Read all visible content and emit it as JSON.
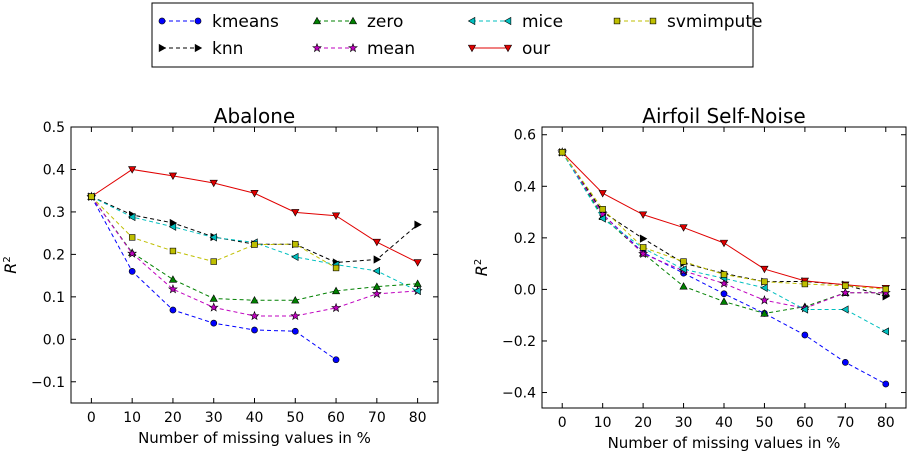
{
  "legend": {
    "placement": "top-center",
    "entries": [
      {
        "key": "kmeans",
        "label": "kmeans",
        "color": "#0000ff",
        "marker": "circle"
      },
      {
        "key": "knn",
        "label": "knn",
        "color": "#000000",
        "marker": "triangle-right"
      },
      {
        "key": "zero",
        "label": "zero",
        "color": "#008000",
        "marker": "triangle-up"
      },
      {
        "key": "mean",
        "label": "mean",
        "color": "#bf00bf",
        "marker": "star"
      },
      {
        "key": "mice",
        "label": "mice",
        "color": "#00bfbf",
        "marker": "triangle-left"
      },
      {
        "key": "our",
        "label": "our",
        "color": "#e00000",
        "marker": "triangle-down"
      },
      {
        "key": "svmimpute",
        "label": "svmimpute",
        "color": "#bfbf00",
        "marker": "square"
      }
    ]
  },
  "chart_data": [
    {
      "type": "line",
      "title": "Abalone",
      "xlabel": "Number of missing values in %",
      "ylabel": "R",
      "ylabel_superscript": "2",
      "xlim": [
        -5,
        85
      ],
      "ylim": [
        -0.15,
        0.5
      ],
      "xticks": [
        "0",
        "10",
        "20",
        "30",
        "40",
        "50",
        "60",
        "70",
        "80"
      ],
      "yticks": [
        "−0.1",
        "0.0",
        "0.1",
        "0.2",
        "0.3",
        "0.4",
        "0.5"
      ],
      "grid": false,
      "series": [
        {
          "name": "kmeans",
          "x": [
            0,
            10,
            20,
            30,
            40,
            50,
            60
          ],
          "y": [
            0.336,
            0.16,
            0.069,
            0.038,
            0.022,
            0.019,
            -0.048
          ]
        },
        {
          "name": "knn",
          "x": [
            0,
            10,
            20,
            30,
            40,
            50,
            60,
            70,
            80
          ],
          "y": [
            0.336,
            0.293,
            0.274,
            0.241,
            0.224,
            0.224,
            0.181,
            0.188,
            0.27
          ]
        },
        {
          "name": "zero",
          "x": [
            0,
            10,
            20,
            30,
            40,
            50,
            60,
            70,
            80
          ],
          "y": [
            0.336,
            0.204,
            0.141,
            0.096,
            0.092,
            0.092,
            0.114,
            0.124,
            0.131
          ]
        },
        {
          "name": "mean",
          "x": [
            0,
            10,
            20,
            30,
            40,
            50,
            60,
            70,
            80
          ],
          "y": [
            0.336,
            0.202,
            0.118,
            0.075,
            0.055,
            0.055,
            0.074,
            0.107,
            0.114
          ]
        },
        {
          "name": "mice",
          "x": [
            0,
            10,
            20,
            30,
            40,
            50,
            60,
            70,
            80
          ],
          "y": [
            0.336,
            0.288,
            0.265,
            0.24,
            0.228,
            0.194,
            0.176,
            0.161,
            0.114
          ]
        },
        {
          "name": "our",
          "x": [
            0,
            10,
            20,
            30,
            40,
            50,
            60,
            70,
            80
          ],
          "y": [
            0.336,
            0.4,
            0.385,
            0.368,
            0.344,
            0.299,
            0.291,
            0.229,
            0.181
          ]
        },
        {
          "name": "svmimpute",
          "x": [
            0,
            10,
            20,
            30,
            40,
            50,
            60
          ],
          "y": [
            0.336,
            0.24,
            0.208,
            0.183,
            0.223,
            0.224,
            0.168
          ]
        }
      ]
    },
    {
      "type": "line",
      "title": "Airfoil Self-Noise",
      "xlabel": "Number of missing values in %",
      "ylabel": "R",
      "ylabel_superscript": "2",
      "xlim": [
        -5,
        85
      ],
      "ylim": [
        -0.46,
        0.63
      ],
      "xticks": [
        "0",
        "10",
        "20",
        "30",
        "40",
        "50",
        "60",
        "70",
        "80"
      ],
      "yticks": [
        "−0.4",
        "−0.2",
        "0.0",
        "0.2",
        "0.4",
        "0.6"
      ],
      "grid": false,
      "series": [
        {
          "name": "kmeans",
          "x": [
            0,
            10,
            20,
            30,
            40,
            50,
            60,
            70,
            80
          ],
          "y": [
            0.532,
            0.292,
            0.143,
            0.063,
            -0.017,
            -0.093,
            -0.177,
            -0.283,
            -0.367
          ]
        },
        {
          "name": "knn",
          "x": [
            0,
            10,
            20,
            30,
            40,
            50,
            60,
            70,
            80
          ],
          "y": [
            0.532,
            0.301,
            0.197,
            0.102,
            0.062,
            0.03,
            0.031,
            0.018,
            -0.027
          ]
        },
        {
          "name": "zero",
          "x": [
            0,
            10,
            20,
            30,
            40,
            50,
            60,
            70,
            80
          ],
          "y": [
            0.532,
            0.282,
            0.14,
            0.012,
            -0.047,
            -0.093,
            -0.067,
            -0.013,
            -0.013
          ]
        },
        {
          "name": "mean",
          "x": [
            0,
            10,
            20,
            30,
            40,
            50,
            60,
            70,
            80
          ],
          "y": [
            0.532,
            0.292,
            0.138,
            0.072,
            0.023,
            -0.042,
            -0.073,
            -0.013,
            -0.013
          ]
        },
        {
          "name": "mice",
          "x": [
            0,
            10,
            20,
            30,
            40,
            50,
            60,
            70,
            80
          ],
          "y": [
            0.532,
            0.275,
            0.16,
            0.078,
            0.043,
            0.006,
            -0.078,
            -0.078,
            -0.163
          ]
        },
        {
          "name": "our",
          "x": [
            0,
            10,
            20,
            30,
            40,
            50,
            60,
            70,
            80
          ],
          "y": [
            0.532,
            0.373,
            0.29,
            0.24,
            0.18,
            0.079,
            0.033,
            0.018,
            0.005
          ]
        },
        {
          "name": "svmimpute",
          "x": [
            0,
            10,
            20,
            30,
            40,
            50,
            60,
            70,
            80
          ],
          "y": [
            0.532,
            0.311,
            0.163,
            0.108,
            0.058,
            0.03,
            0.021,
            0.014,
            0.001
          ]
        }
      ]
    }
  ]
}
